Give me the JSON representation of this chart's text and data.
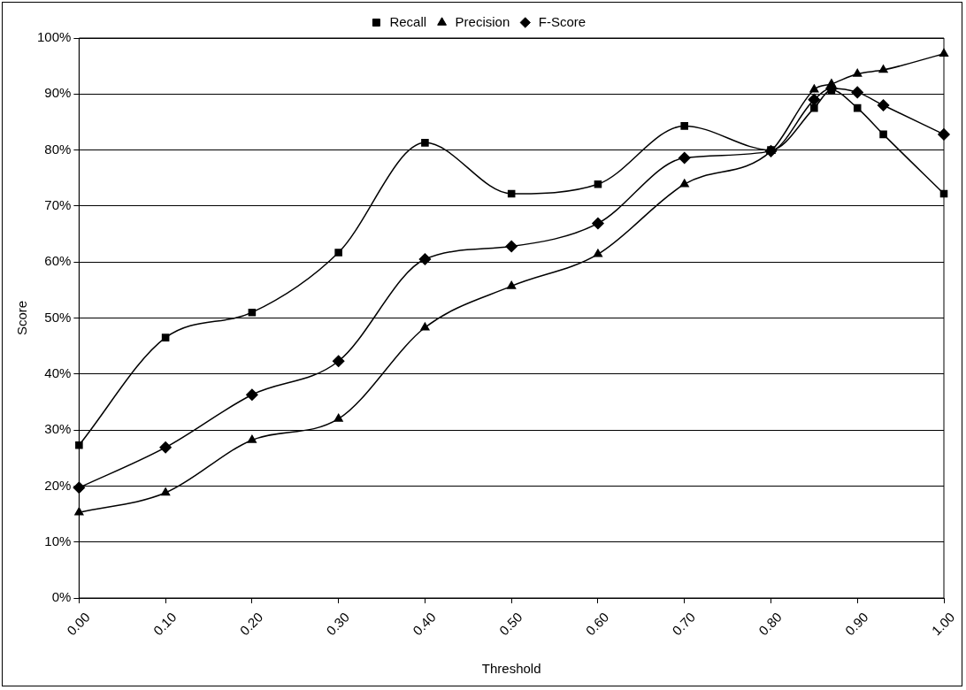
{
  "chart_data": {
    "type": "line",
    "xlabel": "Threshold",
    "ylabel": "Score",
    "x": [
      0,
      0.1,
      0.2,
      0.3,
      0.4,
      0.5,
      0.6,
      0.7,
      0.8,
      0.85,
      0.87,
      0.9,
      0.93,
      1.0
    ],
    "series": [
      {
        "name": "Recall",
        "color": "#000000",
        "marker": "square",
        "values": [
          27.3,
          46.5,
          51,
          61.7,
          81.3,
          72.2,
          73.9,
          84.3,
          80,
          87.5,
          90.7,
          87.5,
          82.8,
          72.2
        ]
      },
      {
        "name": "Precision",
        "color": "#000000",
        "marker": "triangle",
        "values": [
          15.3,
          18.8,
          28.2,
          32,
          48.3,
          55.7,
          61.4,
          73.9,
          79.8,
          90.8,
          91.8,
          93.6,
          94.3,
          97.2
        ]
      },
      {
        "name": "F-Score",
        "color": "#000000",
        "marker": "diamond",
        "values": [
          19.7,
          26.9,
          36.3,
          42.3,
          60.5,
          62.8,
          66.9,
          78.6,
          79.8,
          89,
          91,
          90.3,
          88,
          82.8
        ]
      }
    ],
    "xlim": [
      0,
      1
    ],
    "xticks": [
      {
        "value": 0,
        "label": "0.00"
      },
      {
        "value": 0.1,
        "label": "0.10"
      },
      {
        "value": 0.2,
        "label": "0.20"
      },
      {
        "value": 0.3,
        "label": "0.30"
      },
      {
        "value": 0.4,
        "label": "0.40"
      },
      {
        "value": 0.5,
        "label": "0.50"
      },
      {
        "value": 0.6,
        "label": "0.60"
      },
      {
        "value": 0.7,
        "label": "0.70"
      },
      {
        "value": 0.8,
        "label": "0.80"
      },
      {
        "value": 0.9,
        "label": "0.90"
      },
      {
        "value": 1,
        "label": "1.00"
      }
    ],
    "ylim": [
      0,
      100
    ],
    "yticks": [
      {
        "value": 0,
        "label": "0%"
      },
      {
        "value": 10,
        "label": "10%"
      },
      {
        "value": 20,
        "label": "20%"
      },
      {
        "value": 30,
        "label": "30%"
      },
      {
        "value": 40,
        "label": "40%"
      },
      {
        "value": 50,
        "label": "50%"
      },
      {
        "value": 60,
        "label": "60%"
      },
      {
        "value": 70,
        "label": "70%"
      },
      {
        "value": 80,
        "label": "80%"
      },
      {
        "value": 90,
        "label": "90%"
      },
      {
        "value": 100,
        "label": "100%"
      }
    ],
    "grid": "y",
    "legend": "top",
    "line_style": "solid"
  }
}
